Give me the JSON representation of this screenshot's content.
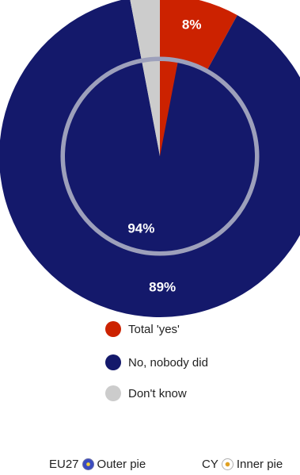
{
  "chart_data": {
    "type": "pie",
    "series": [
      {
        "name": "EU27",
        "ring": "outer",
        "slices": [
          {
            "label": "Total 'yes'",
            "value": 8,
            "color": "#cc2200",
            "data_label": "8%"
          },
          {
            "label": "No, nobody did",
            "value": 89,
            "color": "#14196b",
            "data_label": "89%"
          },
          {
            "label": "Don't know",
            "value": 3,
            "color": "#cccccc",
            "data_label": ""
          }
        ]
      },
      {
        "name": "CY",
        "ring": "inner",
        "slices": [
          {
            "label": "Total 'yes'",
            "value": 3,
            "color": "#cc2200",
            "data_label": ""
          },
          {
            "label": "No, nobody did",
            "value": 94,
            "color": "#14196b",
            "data_label": "94%"
          },
          {
            "label": "Don't know",
            "value": 3,
            "color": "#cccccc",
            "data_label": ""
          }
        ]
      }
    ],
    "legend": [
      {
        "label": "Total 'yes'",
        "color": "#cc2200"
      },
      {
        "label": "No, nobody did",
        "color": "#14196b"
      },
      {
        "label": "Don't know",
        "color": "#cccccc"
      }
    ]
  },
  "footer": {
    "outer_name": "EU27",
    "outer_label": "Outer pie",
    "outer_icon": "eu-flag-icon",
    "inner_name": "CY",
    "inner_label": "Inner pie",
    "inner_icon": "cyprus-flag-icon"
  },
  "colors": {
    "separator": "#9da0bb"
  }
}
